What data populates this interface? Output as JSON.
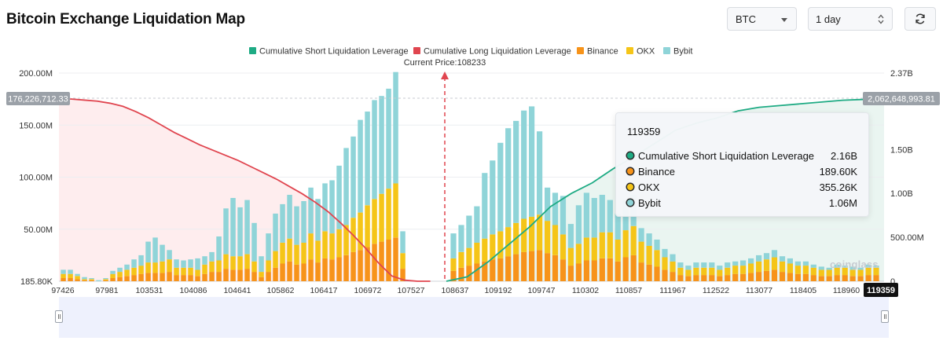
{
  "page": {
    "title": "Bitcoin Exchange Liquidation Map",
    "coin_select": "BTC",
    "period_select": "1 day",
    "watermark": "coinglass"
  },
  "chart_data": {
    "type": "bar",
    "legend": [
      {
        "name": "Cumulative Short Liquidation Leverage",
        "color": "#1eab84"
      },
      {
        "name": "Cumulative Long Liquidation Leverage",
        "color": "#e0454f"
      },
      {
        "name": "Binance",
        "color": "#f7931a"
      },
      {
        "name": "OKX",
        "color": "#f5c518"
      },
      {
        "name": "Bybit",
        "color": "#8fd4d8"
      }
    ],
    "current_price_label": "Current Price:108233",
    "x_ticks": [
      "97426",
      "97981",
      "103531",
      "104086",
      "104641",
      "105862",
      "106417",
      "106972",
      "107527",
      "108637",
      "109192",
      "109747",
      "110302",
      "110857",
      "111967",
      "112522",
      "113077",
      "118405",
      "118960",
      "119359"
    ],
    "y_left_ticks": [
      "200.00M",
      "150.00M",
      "100.00M",
      "50.00M",
      "185.80K"
    ],
    "y_left_range": [
      0,
      200000000
    ],
    "y_right_ticks": [
      "2.37B",
      "1.50B",
      "1.00B",
      "500.00M",
      "0"
    ],
    "y_right_range": [
      0,
      2370000000
    ],
    "long_marker_label": "176,226,712.33",
    "short_marker_label": "2,062,648,993.81",
    "selected_x_label": "119359",
    "long_cumulative": [
      176,
      175,
      174,
      173,
      171,
      168,
      163,
      157,
      150,
      143,
      137,
      131,
      126,
      121,
      116,
      110,
      104,
      98,
      91,
      84,
      76,
      67,
      56,
      44,
      31,
      17,
      5,
      1,
      0,
      0
    ],
    "short_cumulative": [
      0,
      0.05,
      0.22,
      0.42,
      0.62,
      0.85,
      1.0,
      1.12,
      1.28,
      1.42,
      1.57,
      1.72,
      1.8,
      1.86,
      1.94,
      1.98,
      2.0,
      2.02,
      2.04,
      2.06,
      2.07,
      2.1
    ],
    "bars_long_side": {
      "binance": [
        3,
        3,
        2,
        1,
        1,
        0,
        1,
        3,
        4,
        5,
        6,
        7,
        8,
        8,
        8,
        9,
        6,
        6,
        6,
        5,
        7,
        9,
        9,
        12,
        11,
        11,
        12,
        9,
        4,
        9,
        13,
        17,
        19,
        16,
        17,
        21,
        18,
        22,
        21,
        23,
        25,
        28,
        30,
        33,
        36,
        38,
        40,
        42,
        12
      ],
      "okx": [
        4,
        4,
        3,
        1,
        1,
        0,
        1,
        4,
        5,
        6,
        7,
        8,
        10,
        10,
        11,
        12,
        7,
        7,
        7,
        6,
        9,
        10,
        11,
        14,
        13,
        13,
        14,
        10,
        5,
        11,
        16,
        20,
        22,
        19,
        20,
        25,
        21,
        26,
        25,
        27,
        29,
        33,
        36,
        40,
        43,
        46,
        49,
        52,
        15
      ],
      "bybit": [
        4,
        4,
        2,
        2,
        1,
        1,
        1,
        3,
        4,
        5,
        8,
        10,
        20,
        24,
        16,
        9,
        8,
        7,
        8,
        11,
        8,
        9,
        23,
        44,
        56,
        47,
        52,
        37,
        15,
        26,
        36,
        37,
        42,
        37,
        40,
        44,
        40,
        46,
        51,
        61,
        74,
        78,
        89,
        90,
        95,
        94,
        96,
        107,
        21
      ]
    },
    "bars_short_side": {
      "binance": [
        10,
        13,
        15,
        17,
        19,
        21,
        22,
        24,
        26,
        28,
        29,
        30,
        27,
        25,
        21,
        15,
        17,
        20,
        20,
        22,
        22,
        19,
        23,
        25,
        18,
        16,
        14,
        11,
        9,
        6,
        5,
        6,
        6,
        6,
        5,
        6,
        7,
        7,
        8,
        9,
        10,
        11,
        9,
        8,
        7,
        7,
        6,
        5,
        5,
        6,
        6,
        5,
        5,
        6,
        6
      ],
      "okx": [
        12,
        15,
        17,
        20,
        22,
        24,
        26,
        28,
        30,
        32,
        33,
        34,
        31,
        29,
        24,
        17,
        19,
        22,
        22,
        25,
        25,
        21,
        26,
        28,
        20,
        18,
        16,
        12,
        10,
        7,
        6,
        7,
        7,
        7,
        6,
        7,
        8,
        8,
        9,
        10,
        11,
        12,
        10,
        9,
        8,
        8,
        7,
        6,
        6,
        7,
        7,
        6,
        6,
        7,
        7
      ],
      "bybit": [
        24,
        26,
        31,
        35,
        63,
        71,
        85,
        95,
        98,
        104,
        106,
        80,
        32,
        31,
        37,
        23,
        37,
        43,
        38,
        36,
        31,
        25,
        29,
        30,
        13,
        12,
        10,
        8,
        7,
        5,
        4,
        5,
        5,
        5,
        4,
        5,
        4,
        5,
        5,
        6,
        6,
        7,
        5,
        5,
        4,
        4,
        3,
        3,
        2,
        3,
        2,
        3,
        2,
        3,
        2
      ]
    }
  },
  "tooltip": {
    "header": "119359",
    "rows": [
      {
        "name": "Cumulative Short Liquidation Leverage",
        "value": "2.16B",
        "color": "#1eab84"
      },
      {
        "name": "Binance",
        "value": "189.60K",
        "color": "#f7931a"
      },
      {
        "name": "OKX",
        "value": "355.26K",
        "color": "#f5c518"
      },
      {
        "name": "Bybit",
        "value": "1.06M",
        "color": "#8fd4d8"
      }
    ]
  }
}
